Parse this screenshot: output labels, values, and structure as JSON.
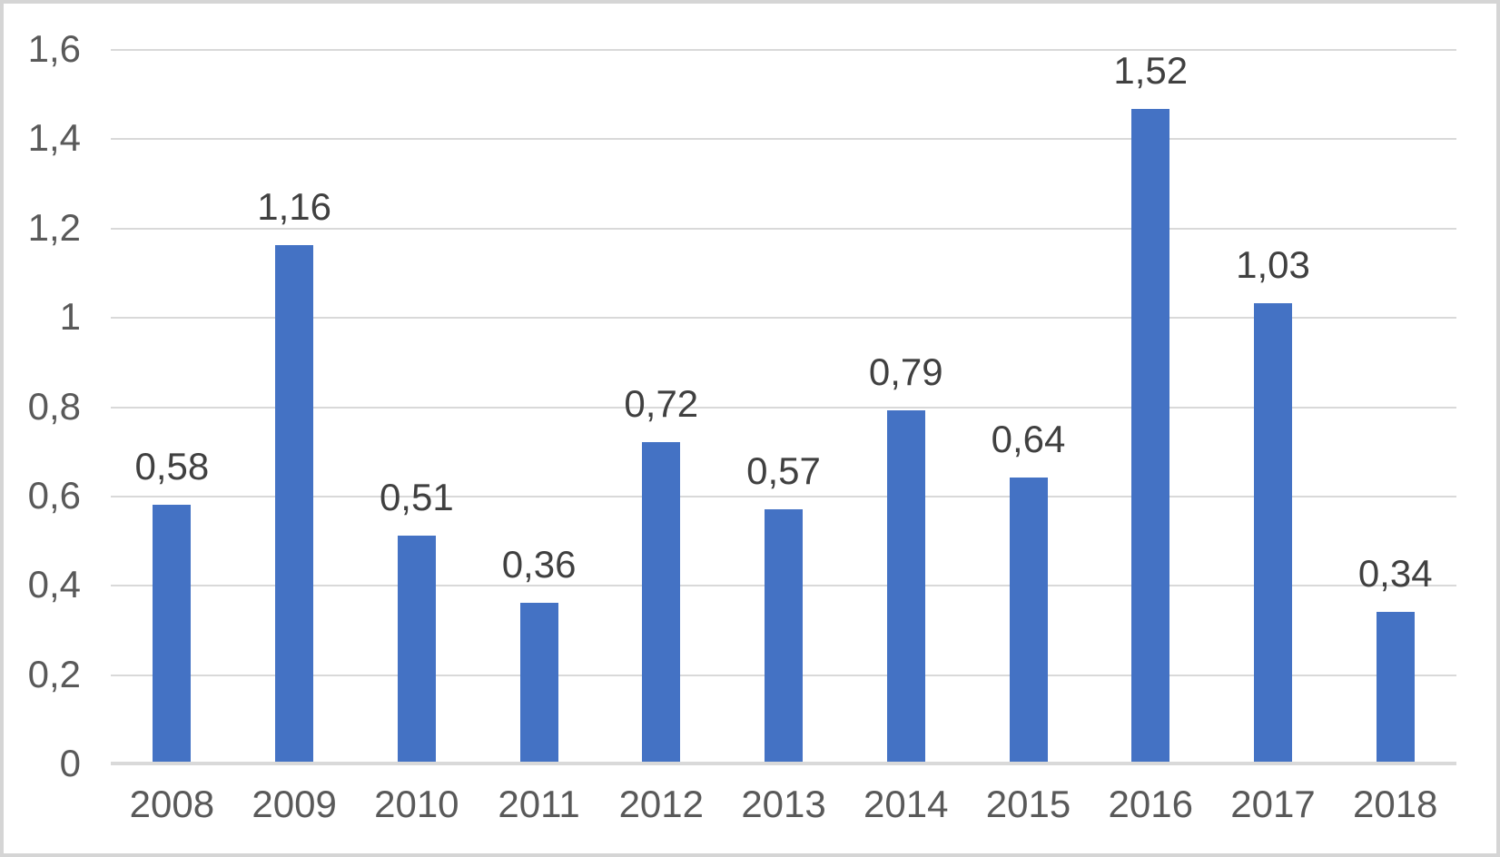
{
  "chart_data": {
    "type": "bar",
    "title": "",
    "xlabel": "",
    "ylabel": "",
    "categories": [
      "2008",
      "2009",
      "2010",
      "2011",
      "2012",
      "2013",
      "2014",
      "2015",
      "2016",
      "2017",
      "2018"
    ],
    "values": [
      0.58,
      1.16,
      0.51,
      0.36,
      0.72,
      0.57,
      0.79,
      0.64,
      1.52,
      1.03,
      0.34
    ],
    "data_labels": [
      "0,58",
      "1,16",
      "0,51",
      "0,36",
      "0,72",
      "0,57",
      "0,79",
      "0,64",
      "1,52",
      "1,03",
      "0,34"
    ],
    "y_ticks": [
      "1,6",
      "1,4",
      "1,2",
      "1",
      "0,8",
      "0,6",
      "0,4",
      "0,2",
      "0"
    ],
    "ylim": [
      0,
      1.6
    ],
    "y_step": 0.2,
    "decimal_separator": ",",
    "grid": "horizontal",
    "legend": "none",
    "colors": {
      "bar": "#4472C4",
      "gridline": "#D9D9D9",
      "axis_line": "#D9D9D9",
      "axis_text": "#595959",
      "data_label_text": "#404040",
      "background": "#FFFFFF",
      "frame_border": "#D5D5D5"
    }
  }
}
